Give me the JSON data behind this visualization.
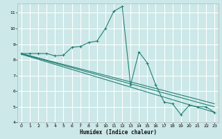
{
  "xlabel": "Humidex (Indice chaleur)",
  "bg_color": "#cce8e8",
  "grid_color": "#ffffff",
  "line_color": "#1a7a6e",
  "xlim": [
    -0.5,
    23.5
  ],
  "ylim": [
    4,
    11.6
  ],
  "xticks": [
    0,
    1,
    2,
    3,
    4,
    5,
    6,
    7,
    8,
    9,
    10,
    11,
    12,
    13,
    14,
    15,
    16,
    17,
    18,
    19,
    20,
    21,
    22,
    23
  ],
  "yticks": [
    4,
    5,
    6,
    7,
    8,
    9,
    10,
    11
  ],
  "series_main": {
    "x": [
      0,
      1,
      2,
      3,
      4,
      5,
      6,
      7,
      8,
      9,
      10,
      11,
      12,
      13,
      14,
      15,
      16,
      17,
      18,
      19,
      20,
      21,
      22,
      23
    ],
    "y": [
      8.4,
      8.4,
      8.4,
      8.4,
      8.25,
      8.3,
      8.8,
      8.85,
      9.1,
      9.2,
      10.0,
      11.1,
      11.4,
      6.4,
      8.5,
      7.8,
      6.4,
      5.3,
      5.2,
      4.5,
      5.1,
      5.0,
      5.0,
      4.65
    ]
  },
  "series_lines": [
    {
      "x": [
        0,
        23
      ],
      "y": [
        8.35,
        4.65
      ]
    },
    {
      "x": [
        0,
        23
      ],
      "y": [
        8.38,
        5.0
      ]
    },
    {
      "x": [
        0,
        23
      ],
      "y": [
        8.4,
        5.2
      ]
    }
  ]
}
